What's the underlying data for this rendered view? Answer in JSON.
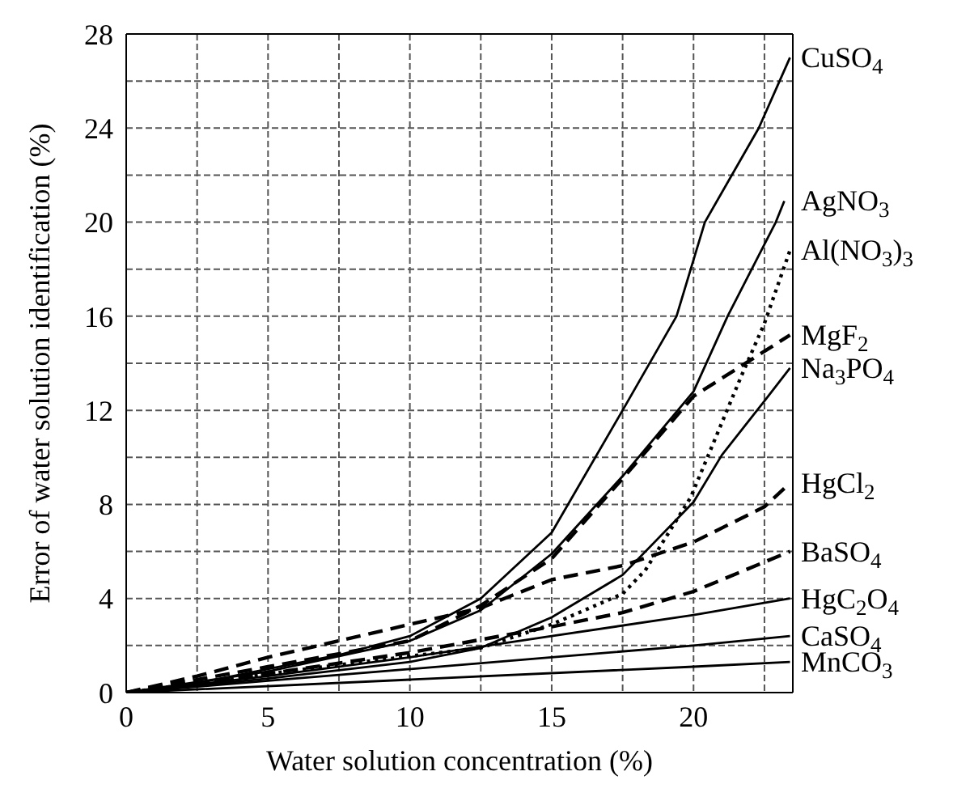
{
  "chart_data": {
    "type": "line",
    "xlabel": "Water solution concentration (%)",
    "ylabel": "Error of water solution identification (%)",
    "xlim": [
      0,
      23.5
    ],
    "ylim": [
      0,
      28
    ],
    "xticks": [
      0,
      {
        "value": 2.5,
        "label": null
      },
      5,
      {
        "value": 7.5,
        "label": null
      },
      10,
      {
        "value": 12.5,
        "label": null
      },
      15,
      {
        "value": 17.5,
        "label": null
      },
      20,
      {
        "value": 22.5,
        "label": null
      }
    ],
    "yticks": [
      0,
      {
        "value": 2,
        "label": null
      },
      4,
      {
        "value": 6,
        "label": null
      },
      8,
      {
        "value": 10,
        "label": null
      },
      12,
      {
        "value": 14,
        "label": null
      },
      16,
      {
        "value": 18,
        "label": null
      },
      20,
      {
        "value": 22,
        "label": null
      },
      24,
      {
        "value": 26,
        "label": null
      },
      28
    ],
    "grid": true,
    "legend": false,
    "marker": "none",
    "series": [
      {
        "name": "CuSO$_{4}$",
        "color": "#000000",
        "line_style": "solid",
        "x": [
          0,
          2.5,
          5,
          7.5,
          10,
          12.5,
          15,
          17.5,
          19.4,
          20.4,
          22.3,
          23.4
        ],
        "values": [
          0,
          0.4,
          1.0,
          1.6,
          2.4,
          4,
          6.8,
          12,
          16,
          20,
          24,
          27
        ]
      },
      {
        "name": "AgNO$_{3}$",
        "color": "#000000",
        "line_style": "solid",
        "x": [
          0,
          5,
          10,
          12.5,
          15,
          17.5,
          20,
          21.2,
          22.9,
          23.2
        ],
        "values": [
          0,
          0.9,
          2.2,
          3.5,
          5.9,
          9.2,
          12.8,
          16,
          20,
          20.9
        ]
      },
      {
        "name": "Al(NO$_{3}$)$_{3}$",
        "color": "#000000",
        "line_style": "dotted",
        "x": [
          0,
          5,
          10,
          12.5,
          15,
          17.5,
          18.3,
          19.9,
          21.7,
          22.5,
          23.4
        ],
        "values": [
          0,
          0.8,
          1.55,
          1.9,
          2.9,
          4.2,
          5.2,
          8.3,
          13.5,
          15.7,
          18.8
        ]
      },
      {
        "name": "MgF$_{2}$",
        "color": "#000000",
        "line_style": "dashed",
        "x": [
          0,
          5,
          10,
          12.5,
          15,
          17.5,
          20,
          23.4
        ],
        "values": [
          0,
          1.1,
          2.2,
          3.7,
          5.7,
          9.1,
          12.6,
          15.2
        ]
      },
      {
        "name": "Na$_{3}$PO$_{4}$",
        "color": "#000000",
        "line_style": "solid",
        "x": [
          0,
          5,
          10,
          12.5,
          15,
          17.5,
          20,
          21,
          22.5,
          23.4
        ],
        "values": [
          0,
          0.6,
          1.3,
          1.9,
          3.2,
          5.0,
          8.1,
          10.1,
          12.4,
          13.8
        ]
      },
      {
        "name": "HgCl$_{2}$",
        "color": "#000000",
        "line_style": "dashed",
        "x": [
          0,
          2.5,
          5,
          10,
          12.5,
          15,
          17.5,
          20,
          22.5,
          23.4
        ],
        "values": [
          0,
          0.7,
          1.5,
          2.9,
          3.6,
          4.8,
          5.4,
          6.4,
          7.9,
          8.9
        ]
      },
      {
        "name": "BaSO$_{4}$",
        "color": "#000000",
        "line_style": "dashed",
        "x": [
          0,
          5,
          10,
          15,
          17.5,
          20,
          23.4
        ],
        "values": [
          0,
          0.8,
          1.7,
          2.8,
          3.4,
          4.3,
          6.0
        ]
      },
      {
        "name": "HgC$_{2}$O$_{4}$",
        "color": "#000000",
        "line_style": "solid",
        "x": [
          0,
          5,
          10,
          15,
          20,
          23.4
        ],
        "values": [
          0,
          0.7,
          1.5,
          2.4,
          3.3,
          4.0
        ]
      },
      {
        "name": "CaSO$_{4}$",
        "color": "#000000",
        "line_style": "solid",
        "x": [
          0,
          5,
          10,
          15,
          20,
          23.4
        ],
        "values": [
          0,
          0.5,
          1.0,
          1.5,
          2.0,
          2.4
        ]
      },
      {
        "name": "MnCO$_{3}$",
        "color": "#000000",
        "line_style": "solid",
        "x": [
          0,
          10,
          20,
          23.4
        ],
        "values": [
          0,
          0.55,
          1.1,
          1.3
        ]
      }
    ]
  }
}
